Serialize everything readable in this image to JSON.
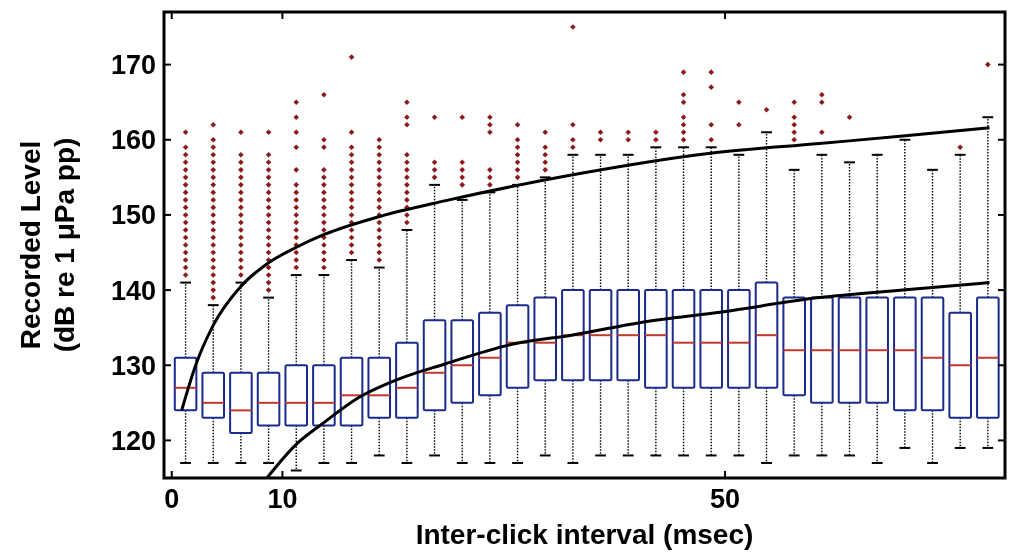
{
  "chart_data": {
    "type": "box",
    "xlabel": "Inter-click interval (msec)",
    "ylabel": "Recorded Level\n(dB re 1 μPa pp)",
    "x": [
      1.25,
      3.75,
      6.25,
      8.75,
      11.25,
      13.75,
      16.25,
      18.75,
      21.25,
      23.75,
      26.25,
      28.75,
      31.25,
      33.75,
      36.25,
      38.75,
      41.25,
      43.75,
      46.25,
      48.75,
      51.25,
      53.75,
      56.25,
      58.75,
      61.25,
      63.75,
      66.25,
      68.75,
      71.25,
      73.75
    ],
    "color": "#1c2a8c",
    "xlim": [
      -0.7,
      75.3
    ],
    "xticks": [
      0,
      10,
      50
    ],
    "ylim": [
      115,
      177
    ],
    "yticks": [
      120,
      130,
      140,
      150,
      160,
      170
    ],
    "grid": false,
    "boxes": [
      {
        "low": 117,
        "q1": 124,
        "median": 127,
        "q3": 131,
        "high": 141,
        "outliers": [
          142,
          143,
          144,
          145,
          146,
          147,
          148,
          149,
          150,
          151,
          152,
          153,
          154,
          155,
          156,
          157,
          158,
          159,
          161
        ]
      },
      {
        "low": 117,
        "q1": 123,
        "median": 125,
        "q3": 129,
        "high": 138,
        "outliers": [
          139,
          140,
          141,
          142,
          143,
          144,
          145,
          146,
          147,
          148,
          149,
          150,
          151,
          152,
          153,
          154,
          155,
          156,
          157,
          158,
          159,
          160,
          162
        ]
      },
      {
        "low": 117,
        "q1": 121,
        "median": 124,
        "q3": 129,
        "high": 141,
        "outliers": [
          142,
          143,
          144,
          145,
          146,
          147,
          148,
          149,
          150,
          151,
          152,
          153,
          154,
          155,
          156,
          157,
          158,
          161
        ]
      },
      {
        "low": 117,
        "q1": 122,
        "median": 125,
        "q3": 129,
        "high": 139,
        "outliers": [
          140,
          141,
          142,
          143,
          144,
          145,
          146,
          147,
          148,
          149,
          150,
          151,
          152,
          153,
          154,
          155,
          156,
          157,
          158,
          161
        ]
      },
      {
        "low": 116,
        "q1": 122,
        "median": 125,
        "q3": 130,
        "high": 142,
        "outliers": [
          143,
          144,
          145,
          146,
          147,
          148,
          149,
          150,
          151,
          152,
          153,
          154,
          156,
          159,
          161,
          163,
          165
        ]
      },
      {
        "low": 117,
        "q1": 122,
        "median": 125,
        "q3": 130,
        "high": 142,
        "outliers": [
          143,
          144,
          145,
          146,
          147,
          148,
          149,
          150,
          151,
          152,
          153,
          154,
          155,
          156,
          159,
          160,
          166
        ]
      },
      {
        "low": 117,
        "q1": 122,
        "median": 126,
        "q3": 131,
        "high": 144,
        "outliers": [
          145,
          146,
          147,
          148,
          149,
          150,
          151,
          152,
          153,
          154,
          155,
          156,
          157,
          158,
          159,
          161,
          171
        ]
      },
      {
        "low": 118,
        "q1": 123,
        "median": 126,
        "q3": 131,
        "high": 143,
        "outliers": [
          144,
          145,
          146,
          147,
          148,
          149,
          150,
          151,
          152,
          153,
          154,
          155,
          156,
          157,
          158,
          159,
          160
        ]
      },
      {
        "low": 117,
        "q1": 123,
        "median": 127,
        "q3": 133,
        "high": 148,
        "outliers": [
          149,
          150,
          151,
          152,
          153,
          154,
          155,
          156,
          157,
          158,
          162,
          163,
          165
        ]
      },
      {
        "low": 118,
        "q1": 124,
        "median": 129,
        "q3": 136,
        "high": 154,
        "outliers": [
          155,
          156,
          157,
          163
        ]
      },
      {
        "low": 117,
        "q1": 125,
        "median": 130,
        "q3": 136,
        "high": 152,
        "outliers": [
          154,
          155,
          156,
          157,
          163
        ]
      },
      {
        "low": 117,
        "q1": 126,
        "median": 131,
        "q3": 137,
        "high": 153,
        "outliers": [
          154,
          155,
          156,
          161,
          162,
          163
        ]
      },
      {
        "low": 117,
        "q1": 127,
        "median": 133,
        "q3": 138,
        "high": 154,
        "outliers": [
          155,
          156,
          157,
          158,
          159,
          160,
          162
        ]
      },
      {
        "low": 118,
        "q1": 128,
        "median": 133,
        "q3": 139,
        "high": 155,
        "outliers": [
          156,
          157,
          158,
          159,
          161
        ]
      },
      {
        "low": 117,
        "q1": 128,
        "median": 134,
        "q3": 140,
        "high": 158,
        "outliers": [
          159,
          160,
          162,
          175
        ]
      },
      {
        "low": 118,
        "q1": 128,
        "median": 134,
        "q3": 140,
        "high": 158,
        "outliers": [
          160,
          161
        ]
      },
      {
        "low": 118,
        "q1": 128,
        "median": 134,
        "q3": 140,
        "high": 158,
        "outliers": [
          160,
          161
        ]
      },
      {
        "low": 118,
        "q1": 127,
        "median": 134,
        "q3": 140,
        "high": 159,
        "outliers": [
          160,
          161
        ]
      },
      {
        "low": 118,
        "q1": 127,
        "median": 133,
        "q3": 140,
        "high": 159,
        "outliers": [
          160,
          161,
          162,
          163,
          165,
          166,
          169
        ]
      },
      {
        "low": 118,
        "q1": 127,
        "median": 133,
        "q3": 140,
        "high": 159,
        "outliers": [
          160,
          162,
          167,
          169
        ]
      },
      {
        "low": 118,
        "q1": 127,
        "median": 133,
        "q3": 140,
        "high": 158,
        "outliers": [
          162,
          165
        ]
      },
      {
        "low": 117,
        "q1": 127,
        "median": 134,
        "q3": 141,
        "high": 161,
        "outliers": [
          164
        ]
      },
      {
        "low": 118,
        "q1": 126,
        "median": 132,
        "q3": 139,
        "high": 156,
        "outliers": [
          160,
          161,
          162,
          163,
          165
        ]
      },
      {
        "low": 118,
        "q1": 125,
        "median": 132,
        "q3": 139,
        "high": 158,
        "outliers": [
          161,
          165,
          166
        ]
      },
      {
        "low": 118,
        "q1": 125,
        "median": 132,
        "q3": 139,
        "high": 157,
        "outliers": [
          163
        ]
      },
      {
        "low": 117,
        "q1": 125,
        "median": 132,
        "q3": 139,
        "high": 158
      },
      {
        "low": 119,
        "q1": 124,
        "median": 132,
        "q3": 139,
        "high": 160
      },
      {
        "low": 117,
        "q1": 124,
        "median": 131,
        "q3": 139,
        "high": 156
      },
      {
        "low": 119,
        "q1": 123,
        "median": 130,
        "q3": 137,
        "high": 158,
        "outliers": [
          159
        ]
      },
      {
        "low": 119,
        "q1": 123,
        "median": 131,
        "q3": 139,
        "high": 163,
        "outliers": [
          170
        ]
      }
    ],
    "series": [
      {
        "type": "line",
        "color": "#000000",
        "x": [
          0.9,
          2.16,
          3.71,
          6.26,
          8.72,
          11.27,
          13.78,
          18.8,
          24.76,
          36.12,
          48.67,
          58.53,
          66.06,
          73.9
        ],
        "values": [
          124,
          130,
          135.2,
          140.5,
          143.6,
          145.7,
          147.4,
          149.8,
          151.9,
          155.3,
          158.2,
          159.5,
          160.5,
          161.6
        ]
      },
      {
        "type": "line",
        "color": "#000000",
        "x": [
          8.6,
          11.27,
          13.78,
          16.9,
          20.05,
          24.76,
          31.1,
          36.12,
          42.4,
          49.7,
          58.53,
          66.06,
          73.9
        ],
        "values": [
          115,
          119.5,
          122.4,
          125.7,
          127.9,
          130.2,
          132.9,
          134,
          135.7,
          137.1,
          139,
          140,
          141
        ]
      }
    ]
  }
}
